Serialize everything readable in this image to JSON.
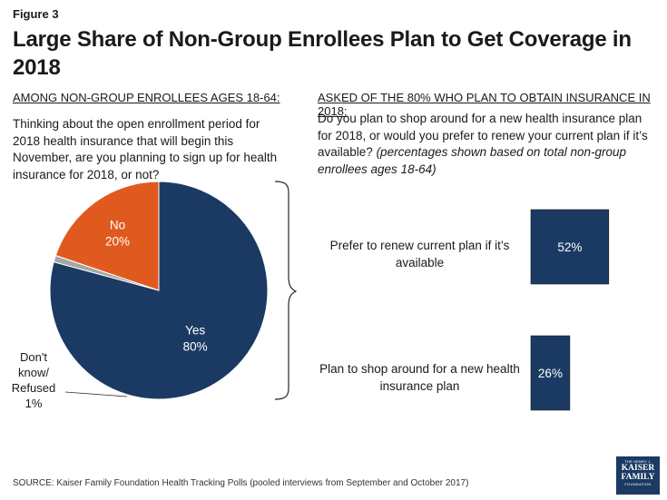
{
  "figure_label": "Figure 3",
  "title": "Large Share of Non-Group Enrollees Plan to Get Coverage in 2018",
  "left": {
    "subhead": "AMONG NON-GROUP ENROLLEES AGES 18-64:",
    "question": "Thinking about the open enrollment period for 2018 health insurance that will begin this November, are you planning to sign up for health insurance for 2018, or not?"
  },
  "right": {
    "subhead": "ASKED OF THE 80% WHO PLAN TO OBTAIN INSURANCE IN 2018:",
    "question": "Do you plan to shop around for a new health insurance plan for 2018, or would you prefer to renew your current plan if it’s available?",
    "note": "(percentages shown based on total non-group enrollees ages 18-64)"
  },
  "colors": {
    "navy": "#1b3a63",
    "orange": "#e05a20",
    "gray": "#a6a6a6",
    "text": "#1a1a1a"
  },
  "chart_data": [
    {
      "type": "pie",
      "title": "Thinking about the open enrollment period for 2018 health insurance that will begin this November, are you planning to sign up for health insurance for 2018, or not?",
      "slices": [
        {
          "label": "Yes",
          "value": 80,
          "value_label": "80%",
          "color": "#1b3a63"
        },
        {
          "label": "Don't know/ Refused",
          "label_lines": [
            "Don't",
            "know/",
            "Refused"
          ],
          "value": 1,
          "value_label": "1%",
          "color": "#a6a6a6"
        },
        {
          "label": "No",
          "value": 20,
          "value_label": "20%",
          "color": "#e05a20"
        }
      ]
    },
    {
      "type": "bar",
      "orientation": "horizontal",
      "categories": [
        "Prefer to renew current plan if it’s available",
        "Plan to shop around for a new health insurance plan"
      ],
      "values": [
        52,
        26
      ],
      "value_labels": [
        "52%",
        "26%"
      ],
      "color": "#1b3a63"
    }
  ],
  "footer": {
    "source": "SOURCE: Kaiser Family Foundation Health Tracking Polls (pooled interviews from September and October 2017)"
  },
  "logo": {
    "line1": "THE HENRY J.",
    "line2": "KAISER",
    "line3": "FAMILY",
    "line4": "FOUNDATION"
  }
}
